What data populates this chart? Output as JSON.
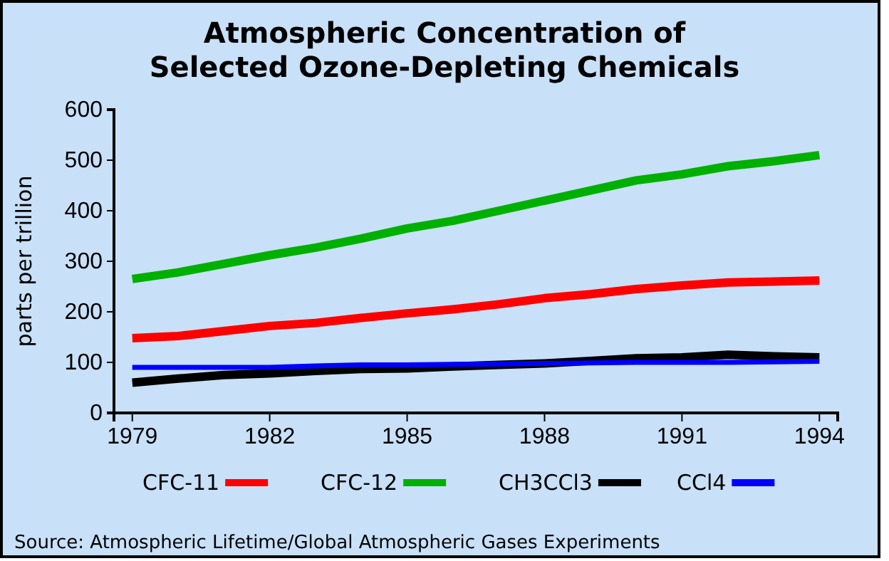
{
  "chart_data": {
    "type": "line",
    "title": "Atmospheric Concentration of Selected Ozone-Depleting Chemicals",
    "ylabel": "parts per trillion",
    "x": [
      1979,
      1980,
      1981,
      1982,
      1983,
      1984,
      1985,
      1986,
      1987,
      1988,
      1989,
      1990,
      1991,
      1992,
      1993,
      1994
    ],
    "series": [
      {
        "name": "CFC-11",
        "color": "#ff0000",
        "values": [
          148,
          152,
          162,
          172,
          178,
          188,
          197,
          205,
          215,
          227,
          235,
          245,
          252,
          258,
          260,
          262
        ]
      },
      {
        "name": "CFC-12",
        "color": "#00b000",
        "values": [
          265,
          278,
          295,
          312,
          327,
          345,
          365,
          380,
          400,
          420,
          440,
          460,
          472,
          488,
          498,
          510
        ]
      },
      {
        "name": "CH3CCl3",
        "color": "#000000",
        "values": [
          60,
          68,
          75,
          78,
          83,
          87,
          88,
          92,
          95,
          98,
          103,
          108,
          110,
          115,
          112,
          110
        ]
      },
      {
        "name": "CCl4",
        "color": "#0000ff",
        "values": [
          90,
          90,
          90,
          90,
          93,
          95,
          95,
          96,
          97,
          98,
          99,
          100,
          100,
          100,
          101,
          102
        ]
      }
    ],
    "xlim": [
      1978.6,
      1994.4
    ],
    "xticks": [
      1979,
      1982,
      1985,
      1988,
      1991,
      1994
    ],
    "ylim": [
      0,
      600
    ],
    "yticks": [
      0,
      100,
      200,
      300,
      400,
      500,
      600
    ],
    "grid": false,
    "legend": "bottom",
    "marker": "none",
    "line_style": "solid",
    "annotations": [
      "Source: Atmospheric Lifetime/Global Atmospheric Gases Experiments"
    ]
  }
}
